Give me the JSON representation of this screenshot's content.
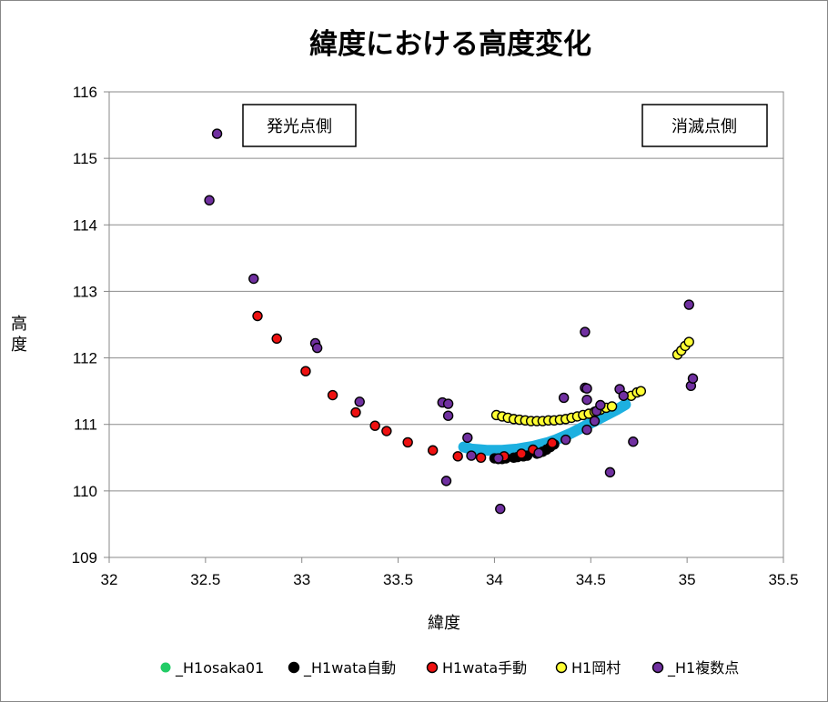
{
  "chart_data": {
    "type": "scatter",
    "title": "緯度における高度変化",
    "xlabel": "緯度",
    "ylabel": "高度",
    "xlim": [
      32,
      35.5
    ],
    "ylim": [
      109,
      116
    ],
    "x_ticks": [
      "32",
      "32.5",
      "33",
      "33.5",
      "34",
      "34.5",
      "35",
      "35.5"
    ],
    "y_ticks": [
      "109",
      "110",
      "111",
      "112",
      "113",
      "114",
      "115",
      "116"
    ],
    "grid": "horizontal",
    "legend_position": "bottom",
    "annotations": [
      "発光点側",
      "消滅点側"
    ],
    "series": [
      {
        "name": "_H1osaka01",
        "color": "#1db0e0",
        "legend_color": "#22cc66",
        "points": [
          [
            33.84,
            110.66
          ],
          [
            33.88,
            110.63
          ],
          [
            33.92,
            110.62
          ],
          [
            33.96,
            110.61
          ],
          [
            34.0,
            110.61
          ],
          [
            34.04,
            110.61
          ],
          [
            34.08,
            110.62
          ],
          [
            34.12,
            110.63
          ],
          [
            34.16,
            110.65
          ],
          [
            34.2,
            110.67
          ],
          [
            34.24,
            110.7
          ],
          [
            34.28,
            110.73
          ],
          [
            34.32,
            110.77
          ],
          [
            34.36,
            110.82
          ],
          [
            34.4,
            110.87
          ],
          [
            34.44,
            110.93
          ],
          [
            34.48,
            110.99
          ],
          [
            34.52,
            111.05
          ],
          [
            34.56,
            111.11
          ],
          [
            34.6,
            111.17
          ],
          [
            34.64,
            111.23
          ],
          [
            34.68,
            111.3
          ]
        ]
      },
      {
        "name": "_H1wata自動",
        "color": "#000000",
        "points": [
          [
            34.0,
            110.49
          ],
          [
            34.02,
            110.48
          ],
          [
            34.04,
            110.48
          ],
          [
            34.06,
            110.49
          ],
          [
            34.1,
            110.5
          ],
          [
            34.12,
            110.51
          ],
          [
            34.15,
            110.52
          ],
          [
            34.17,
            110.53
          ],
          [
            34.22,
            110.56
          ],
          [
            34.25,
            110.59
          ],
          [
            34.27,
            110.62
          ],
          [
            34.29,
            110.66
          ],
          [
            34.31,
            110.7
          ]
        ]
      },
      {
        "name": "H1wata手動",
        "color": "#ee1111",
        "points": [
          [
            32.77,
            112.63
          ],
          [
            32.87,
            112.29
          ],
          [
            33.02,
            111.8
          ],
          [
            33.16,
            111.44
          ],
          [
            33.28,
            111.18
          ],
          [
            33.38,
            110.98
          ],
          [
            33.44,
            110.9
          ],
          [
            33.55,
            110.73
          ],
          [
            33.68,
            110.61
          ],
          [
            33.81,
            110.52
          ],
          [
            33.93,
            110.5
          ],
          [
            34.05,
            110.52
          ],
          [
            34.14,
            110.56
          ],
          [
            34.2,
            110.62
          ],
          [
            34.3,
            110.72
          ]
        ]
      },
      {
        "name": "H1岡村",
        "color": "#ffff33",
        "points": [
          [
            34.01,
            111.14
          ],
          [
            34.04,
            111.12
          ],
          [
            34.07,
            111.1
          ],
          [
            34.1,
            111.08
          ],
          [
            34.13,
            111.07
          ],
          [
            34.16,
            111.06
          ],
          [
            34.19,
            111.05
          ],
          [
            34.22,
            111.05
          ],
          [
            34.25,
            111.05
          ],
          [
            34.28,
            111.06
          ],
          [
            34.31,
            111.06
          ],
          [
            34.34,
            111.07
          ],
          [
            34.37,
            111.08
          ],
          [
            34.4,
            111.1
          ],
          [
            34.43,
            111.12
          ],
          [
            34.46,
            111.14
          ],
          [
            34.49,
            111.16
          ],
          [
            34.52,
            111.19
          ],
          [
            34.55,
            111.22
          ],
          [
            34.58,
            111.25
          ],
          [
            34.61,
            111.27
          ],
          [
            34.71,
            111.43
          ],
          [
            34.74,
            111.48
          ],
          [
            34.76,
            111.5
          ],
          [
            34.95,
            112.05
          ],
          [
            34.97,
            112.11
          ],
          [
            34.99,
            112.18
          ],
          [
            35.01,
            112.24
          ]
        ]
      },
      {
        "name": "_H1複数点",
        "color": "#7030a0",
        "points": [
          [
            32.52,
            114.37
          ],
          [
            32.56,
            115.37
          ],
          [
            32.75,
            113.19
          ],
          [
            33.07,
            112.22
          ],
          [
            33.08,
            112.15
          ],
          [
            33.3,
            111.34
          ],
          [
            33.73,
            111.33
          ],
          [
            33.76,
            111.31
          ],
          [
            33.76,
            111.13
          ],
          [
            33.75,
            110.15
          ],
          [
            33.86,
            110.8
          ],
          [
            33.88,
            110.53
          ],
          [
            34.02,
            110.49
          ],
          [
            34.03,
            109.73
          ],
          [
            34.23,
            110.57
          ],
          [
            34.36,
            111.4
          ],
          [
            34.37,
            110.77
          ],
          [
            34.47,
            112.39
          ],
          [
            34.47,
            111.55
          ],
          [
            34.48,
            111.54
          ],
          [
            34.48,
            111.37
          ],
          [
            34.48,
            110.92
          ],
          [
            34.52,
            111.05
          ],
          [
            34.53,
            111.2
          ],
          [
            34.55,
            111.29
          ],
          [
            34.6,
            110.28
          ],
          [
            34.65,
            111.53
          ],
          [
            34.67,
            111.43
          ],
          [
            34.72,
            110.74
          ],
          [
            35.01,
            112.8
          ],
          [
            35.02,
            111.58
          ],
          [
            35.03,
            111.69
          ]
        ]
      }
    ]
  }
}
